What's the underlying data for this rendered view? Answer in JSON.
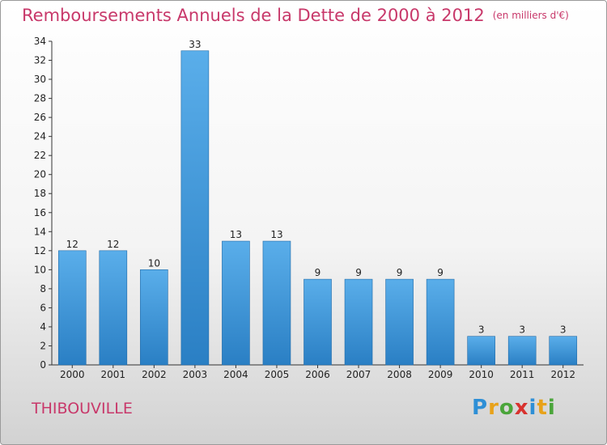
{
  "title": "Remboursements Annuels de la Dette de 2000 à 2012",
  "unit_note": "(en milliers d'€)",
  "city": "THIBOUVILLE",
  "logo": {
    "letters": [
      {
        "ch": "P",
        "color": "#2e8fd6"
      },
      {
        "ch": "r",
        "color": "#e8a21a"
      },
      {
        "ch": "o",
        "color": "#4aa53a"
      },
      {
        "ch": "x",
        "color": "#d8322e"
      },
      {
        "ch": "i",
        "color": "#2e8fd6"
      },
      {
        "ch": "t",
        "color": "#e8a21a"
      },
      {
        "ch": "i",
        "color": "#4aa53a"
      }
    ]
  },
  "colors": {
    "title": "#c8386a",
    "bar_top": "#5aaeea",
    "bar_bottom": "#2a7fc4",
    "bar_edge": "#1f6aa8"
  },
  "chart_data": {
    "type": "bar",
    "title": "Remboursements Annuels de la Dette de 2000 à 2012",
    "categories": [
      "2000",
      "2001",
      "2002",
      "2003",
      "2004",
      "2005",
      "2006",
      "2007",
      "2008",
      "2009",
      "2010",
      "2011",
      "2012"
    ],
    "values": [
      12,
      12,
      10,
      33,
      13,
      13,
      9,
      9,
      9,
      9,
      3,
      3,
      3
    ],
    "ylim": [
      0,
      34
    ],
    "yticks": [
      0,
      2,
      4,
      6,
      8,
      10,
      12,
      14,
      16,
      18,
      20,
      22,
      24,
      26,
      28,
      30,
      32,
      34
    ],
    "grid": false,
    "legend": "none"
  }
}
